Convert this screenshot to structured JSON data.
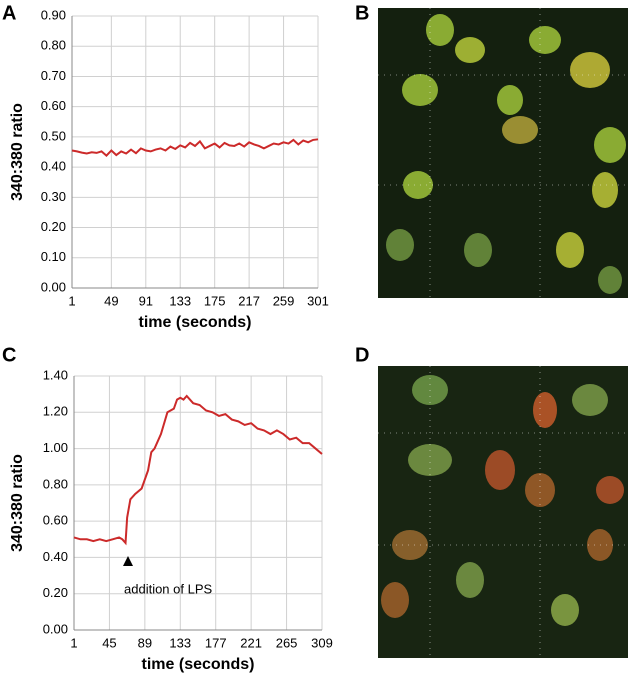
{
  "panel_labels": [
    "A",
    "B",
    "C",
    "D"
  ],
  "chart_data": [
    {
      "type": "line",
      "xlabel": "time (seconds)",
      "ylabel": "340:380 ratio",
      "color": "#cc2a2a",
      "grid": true,
      "xlim": [
        1,
        301
      ],
      "xticks": [
        1,
        49,
        91,
        133,
        175,
        217,
        259,
        301
      ],
      "ylim": [
        0,
        0.9
      ],
      "yticks": [
        {
          "value": 0,
          "label": "0.00"
        },
        {
          "value": 0.1,
          "label": "0.10"
        },
        {
          "value": 0.2,
          "label": "0.20"
        },
        {
          "value": 0.3,
          "label": "0.30"
        },
        {
          "value": 0.4,
          "label": "0.40"
        },
        {
          "value": 0.5,
          "label": "0.50"
        },
        {
          "value": 0.6,
          "label": "0.60"
        },
        {
          "value": 0.7,
          "label": "0.70"
        },
        {
          "value": 0.8,
          "label": "0.80"
        },
        {
          "value": 0.9,
          "label": "0.90"
        }
      ],
      "x": [
        1,
        7,
        13,
        19,
        25,
        31,
        37,
        43,
        49,
        55,
        61,
        67,
        73,
        79,
        85,
        91,
        97,
        103,
        109,
        115,
        121,
        127,
        133,
        139,
        145,
        151,
        157,
        163,
        169,
        175,
        181,
        187,
        193,
        199,
        205,
        211,
        217,
        223,
        229,
        235,
        241,
        247,
        253,
        259,
        265,
        271,
        277,
        283,
        289,
        295,
        301
      ],
      "values": [
        0.455,
        0.452,
        0.448,
        0.445,
        0.449,
        0.447,
        0.452,
        0.438,
        0.455,
        0.44,
        0.452,
        0.445,
        0.458,
        0.446,
        0.462,
        0.455,
        0.452,
        0.458,
        0.462,
        0.455,
        0.468,
        0.46,
        0.472,
        0.465,
        0.48,
        0.47,
        0.485,
        0.462,
        0.47,
        0.478,
        0.465,
        0.48,
        0.472,
        0.47,
        0.478,
        0.468,
        0.482,
        0.475,
        0.47,
        0.462,
        0.47,
        0.478,
        0.475,
        0.482,
        0.478,
        0.49,
        0.475,
        0.488,
        0.482,
        0.49,
        0.492
      ]
    },
    {
      "type": "line",
      "xlabel": "time (seconds)",
      "ylabel": "340:380 ratio",
      "color": "#cc2a2a",
      "grid": true,
      "annotation": "addition of LPS",
      "xlim": [
        1,
        309
      ],
      "xticks": [
        1,
        45,
        89,
        133,
        177,
        221,
        265,
        309
      ],
      "ylim": [
        0,
        1.4
      ],
      "yticks": [
        {
          "value": 0,
          "label": "0.00"
        },
        {
          "value": 0.2,
          "label": "0.20"
        },
        {
          "value": 0.4,
          "label": "0.40"
        },
        {
          "value": 0.6,
          "label": "0.60"
        },
        {
          "value": 0.8,
          "label": "0.80"
        },
        {
          "value": 1,
          "label": "1.00"
        },
        {
          "value": 1.2,
          "label": "1.20"
        },
        {
          "value": 1.4,
          "label": "1.40"
        }
      ],
      "x": [
        1,
        9,
        17,
        25,
        33,
        41,
        49,
        57,
        61,
        65,
        67,
        71,
        77,
        85,
        93,
        97,
        101,
        109,
        117,
        125,
        129,
        133,
        137,
        141,
        149,
        157,
        165,
        173,
        181,
        189,
        197,
        205,
        213,
        221,
        229,
        237,
        245,
        253,
        261,
        269,
        277,
        285,
        293,
        301,
        309
      ],
      "values": [
        0.51,
        0.5,
        0.5,
        0.49,
        0.5,
        0.49,
        0.5,
        0.51,
        0.5,
        0.48,
        0.62,
        0.72,
        0.75,
        0.78,
        0.88,
        0.98,
        1.0,
        1.08,
        1.2,
        1.22,
        1.27,
        1.28,
        1.27,
        1.29,
        1.25,
        1.24,
        1.21,
        1.2,
        1.18,
        1.19,
        1.16,
        1.15,
        1.13,
        1.14,
        1.11,
        1.1,
        1.08,
        1.1,
        1.08,
        1.05,
        1.06,
        1.03,
        1.03,
        1.0,
        0.97
      ]
    }
  ]
}
